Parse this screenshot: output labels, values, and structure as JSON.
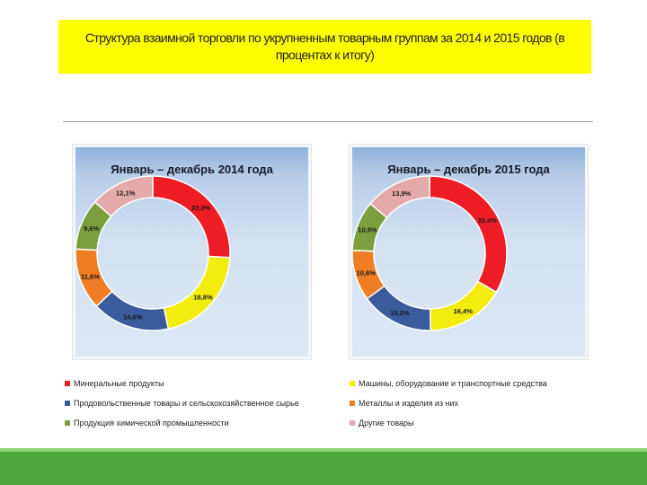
{
  "title": "Структура взаимной торговли по укрупненным товарным группам за 2014 и 2015 годов (в процентах к итогу)",
  "colors": {
    "mineral": "#ee1c25",
    "machinery": "#f2ec0f",
    "food": "#3a5c9c",
    "metals": "#ee7d24",
    "chemical": "#7d9e3c",
    "other": "#e4a9aa"
  },
  "legend": [
    {
      "key": "mineral",
      "label": "Минеральные продукты"
    },
    {
      "key": "food",
      "label": "Продовольственные товары и сельскохозяйственное сырье"
    },
    {
      "key": "chemical",
      "label": "Продукция химической промышленности"
    },
    {
      "key": "machinery",
      "label": "Машины, оборудование и транспортные средства"
    },
    {
      "key": "metals",
      "label": "Металлы и изделия из них"
    },
    {
      "key": "other",
      "label": "Другие товары"
    }
  ],
  "chart_data": [
    {
      "type": "pie",
      "donut": true,
      "title": "Январь – декабрь 2014 года",
      "slices": [
        {
          "key": "mineral",
          "value": 23.3,
          "label": "23,3%"
        },
        {
          "key": "machinery",
          "value": 18.8,
          "label": "18,8%"
        },
        {
          "key": "food",
          "value": 14.6,
          "label": "14,6%"
        },
        {
          "key": "metals",
          "value": 11.6,
          "label": "11,6%"
        },
        {
          "key": "chemical",
          "value": 9.6,
          "label": "9,6%"
        },
        {
          "key": "other",
          "value": 12.1,
          "label": "12,1%"
        }
      ]
    },
    {
      "type": "pie",
      "donut": true,
      "title": "Январь – декабрь 2015 года",
      "slices": [
        {
          "key": "mineral",
          "value": 33.4,
          "label": "33,4%"
        },
        {
          "key": "machinery",
          "value": 16.4,
          "label": "16,4%"
        },
        {
          "key": "food",
          "value": 15.2,
          "label": "15,2%"
        },
        {
          "key": "metals",
          "value": 10.6,
          "label": "10,6%"
        },
        {
          "key": "chemical",
          "value": 10.5,
          "label": "10,5%"
        },
        {
          "key": "other",
          "value": 13.9,
          "label": "13,9%"
        }
      ]
    }
  ]
}
